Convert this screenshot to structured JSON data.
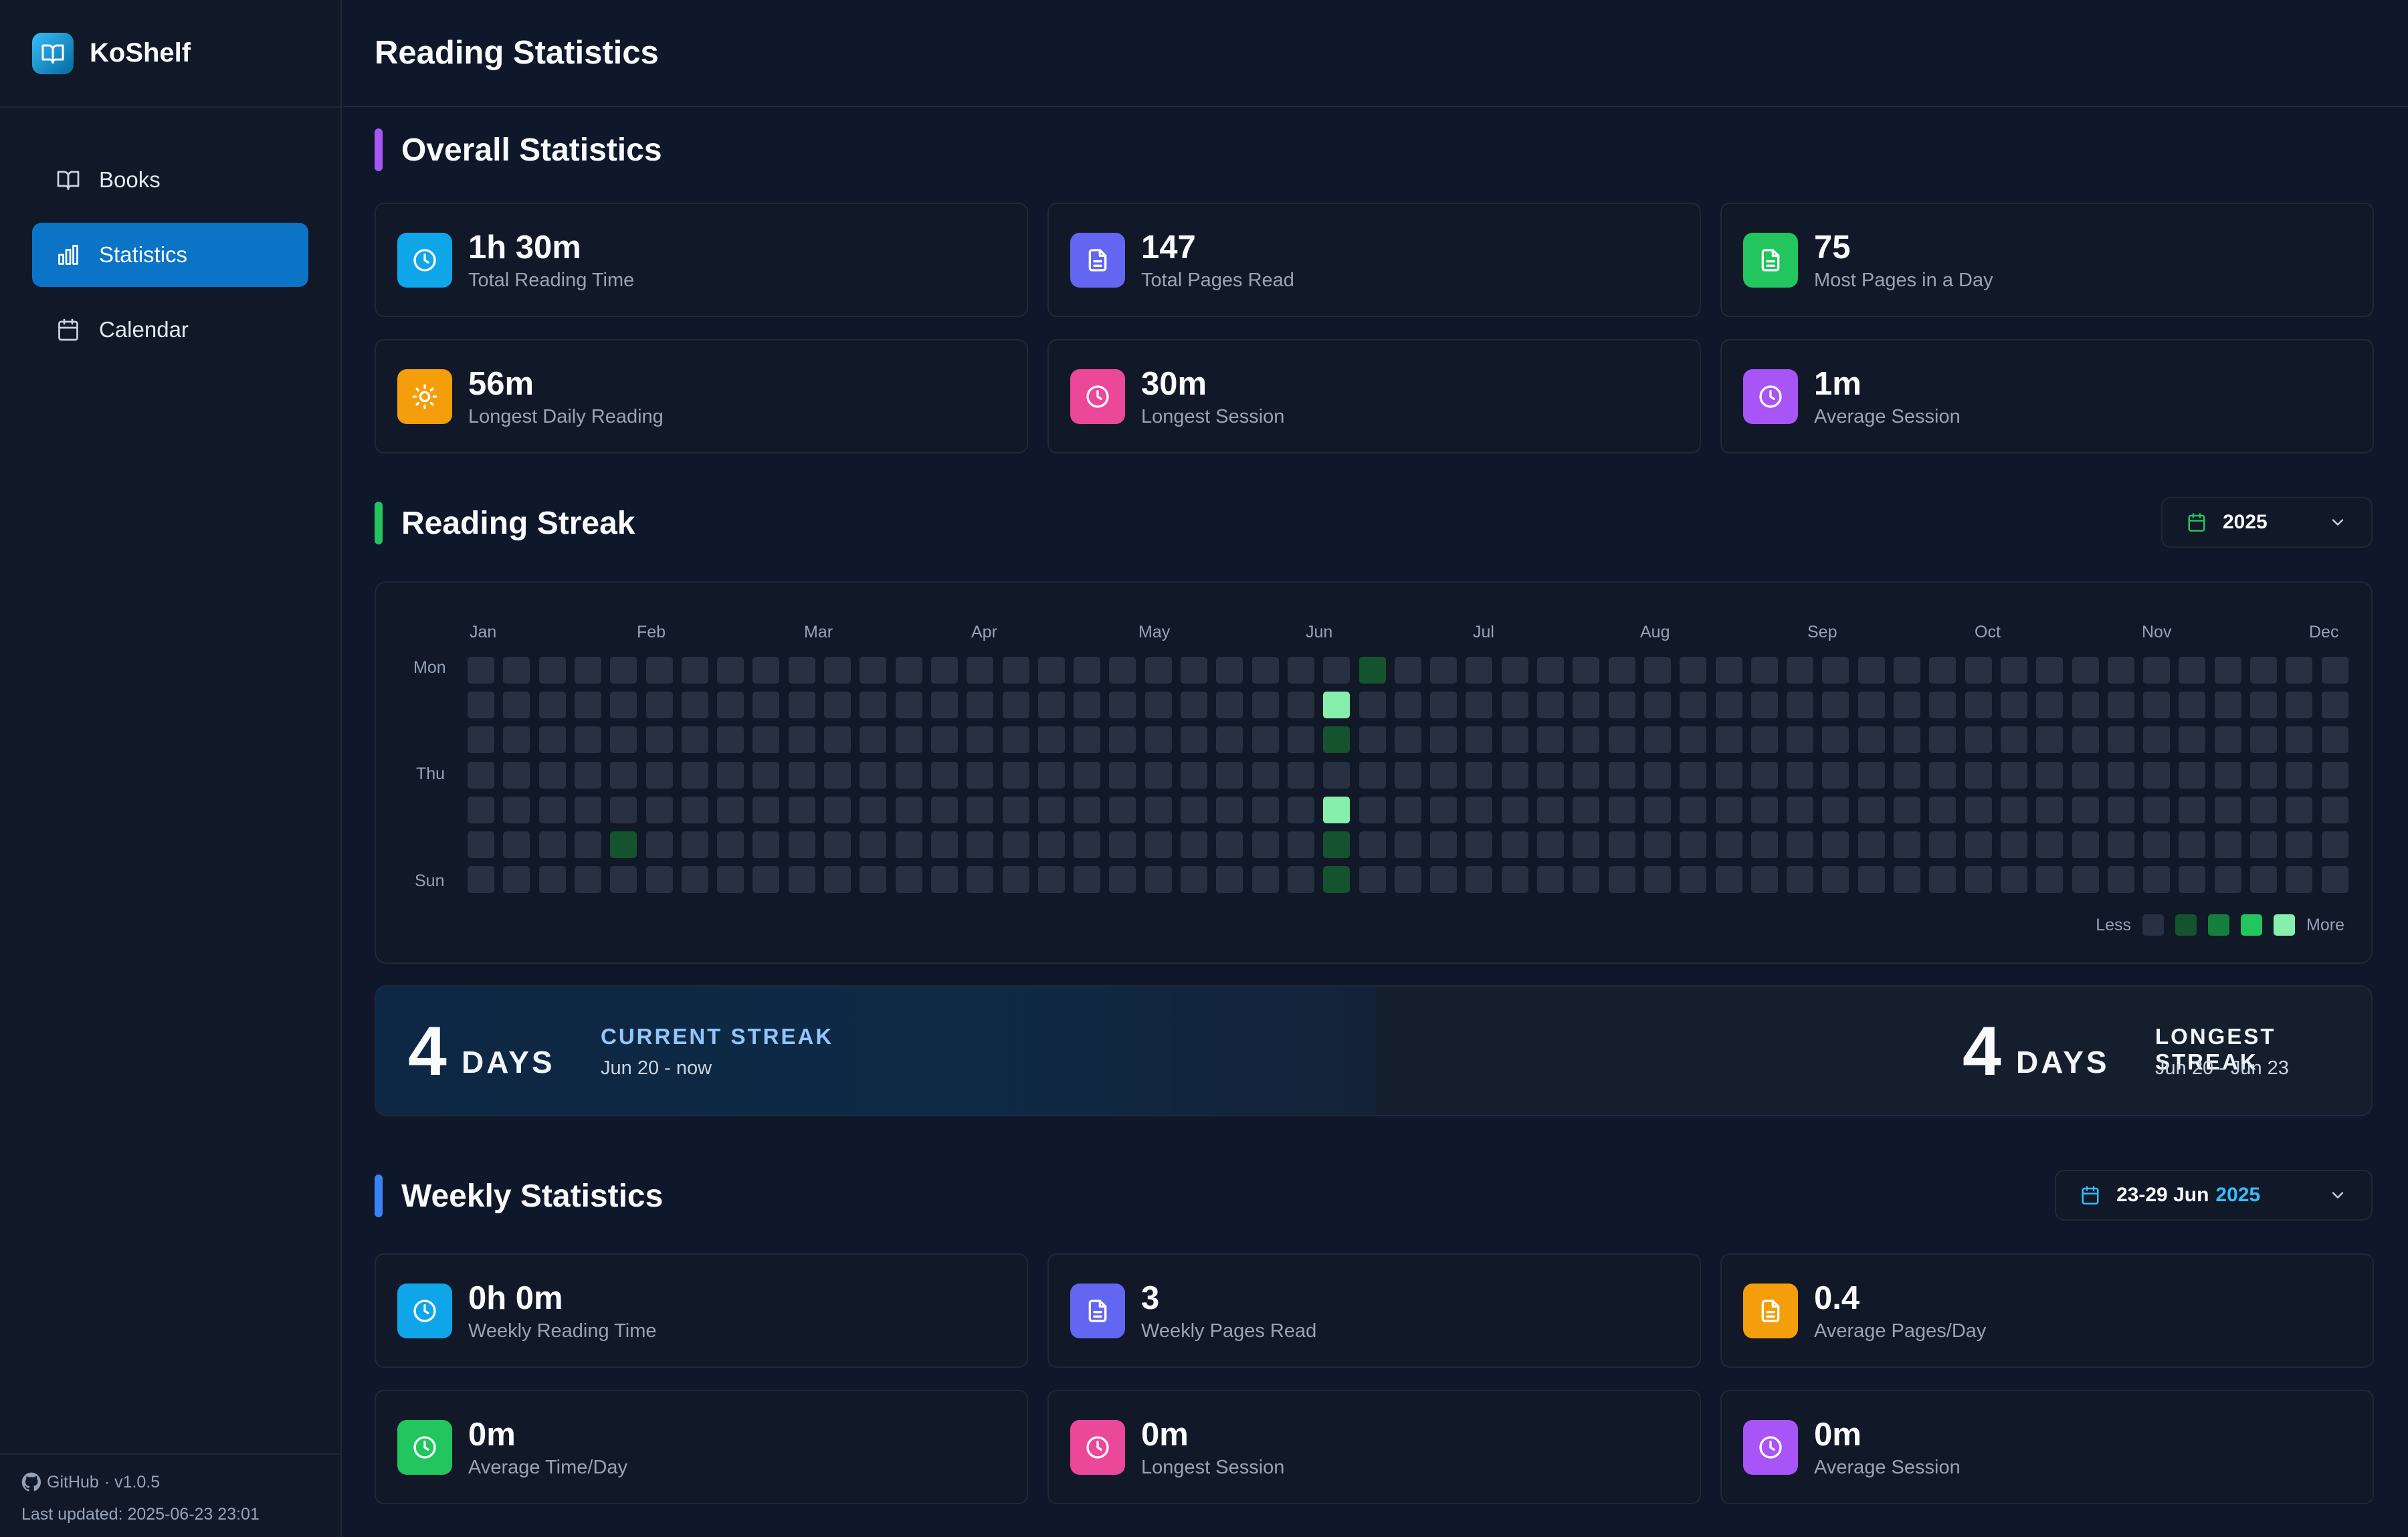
{
  "app": {
    "name": "KoShelf"
  },
  "sidebar": {
    "items": [
      {
        "label": "Books",
        "icon": "book-open-icon",
        "active": false
      },
      {
        "label": "Statistics",
        "icon": "bar-chart-icon",
        "active": true
      },
      {
        "label": "Calendar",
        "icon": "calendar-icon",
        "active": false
      }
    ],
    "footer": {
      "github": "GitHub",
      "version": "· v1.0.5",
      "updated": "Last updated: 2025-06-23 23:01"
    }
  },
  "header": {
    "title": "Reading Statistics"
  },
  "overall": {
    "title": "Overall Statistics",
    "accent": "#a855f7",
    "cards": [
      {
        "value": "1h 30m",
        "label": "Total Reading Time",
        "icon": "clock-icon",
        "color": "#0ea5e9"
      },
      {
        "value": "147",
        "label": "Total Pages Read",
        "icon": "document-icon",
        "color": "#6366f1"
      },
      {
        "value": "75",
        "label": "Most Pages in a Day",
        "icon": "document-icon",
        "color": "#22c55e"
      },
      {
        "value": "56m",
        "label": "Longest Daily Reading",
        "icon": "sun-icon",
        "color": "#f59e0b"
      },
      {
        "value": "30m",
        "label": "Longest Session",
        "icon": "clock-icon",
        "color": "#ec4899"
      },
      {
        "value": "1m",
        "label": "Average Session",
        "icon": "clock-icon",
        "color": "#a855f7"
      }
    ]
  },
  "streak": {
    "title": "Reading Streak",
    "accent": "#22c55e",
    "year": "2025",
    "months": [
      "Jan",
      "Feb",
      "Mar",
      "Apr",
      "May",
      "Jun",
      "Jul",
      "Aug",
      "Sep",
      "Oct",
      "Nov",
      "Dec"
    ],
    "day_labels": [
      "Mon",
      "Thu",
      "Sun"
    ],
    "weeks": 53,
    "active_cells": [
      {
        "week": 4,
        "day": 5,
        "level": 1
      },
      {
        "week": 24,
        "day": 1,
        "level": 4
      },
      {
        "week": 24,
        "day": 2,
        "level": 1
      },
      {
        "week": 24,
        "day": 4,
        "level": 4
      },
      {
        "week": 24,
        "day": 5,
        "level": 1
      },
      {
        "week": 24,
        "day": 6,
        "level": 1
      },
      {
        "week": 25,
        "day": 0,
        "level": 1
      }
    ],
    "level_colors": [
      "#273142",
      "#14532d",
      "#15803d",
      "#22c55e",
      "#86efac"
    ],
    "legend": {
      "less": "Less",
      "more": "More"
    },
    "current": {
      "count": "4",
      "unit": "DAYS",
      "label": "CURRENT STREAK",
      "range": "Jun 20 - now"
    },
    "longest": {
      "count": "4",
      "unit": "DAYS",
      "label": "LONGEST STREAK",
      "range": "Jun 20 - Jun 23"
    }
  },
  "weekly": {
    "title": "Weekly Statistics",
    "accent": "#3b82f6",
    "range": "23-29 Jun",
    "range_year": "2025",
    "cards": [
      {
        "value": "0h 0m",
        "label": "Weekly Reading Time",
        "icon": "clock-icon",
        "color": "#0ea5e9"
      },
      {
        "value": "3",
        "label": "Weekly Pages Read",
        "icon": "document-icon",
        "color": "#6366f1"
      },
      {
        "value": "0.4",
        "label": "Average Pages/Day",
        "icon": "document-icon",
        "color": "#f59e0b"
      },
      {
        "value": "0m",
        "label": "Average Time/Day",
        "icon": "clock-icon",
        "color": "#22c55e"
      },
      {
        "value": "0m",
        "label": "Longest Session",
        "icon": "clock-icon",
        "color": "#ec4899"
      },
      {
        "value": "0m",
        "label": "Average Session",
        "icon": "clock-icon",
        "color": "#a855f7"
      }
    ]
  }
}
